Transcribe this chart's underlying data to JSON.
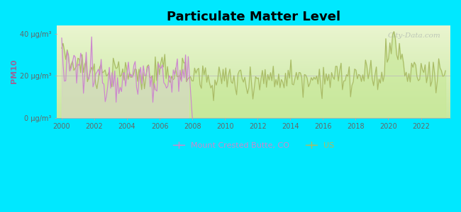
{
  "title": "Particulate Matter Level",
  "ylabel": "PM10",
  "bg_color": "#00e8ff",
  "plot_bg_top": "#f0f8e0",
  "plot_bg_bottom": "#c8e8a0",
  "title_fontsize": 13,
  "ylim": [
    0,
    44
  ],
  "xlim": [
    1999.7,
    2023.8
  ],
  "yticks": [
    0,
    20,
    40
  ],
  "ytick_labels": [
    "0 μg/m³",
    "20 μg/m³",
    "40 μg/m³"
  ],
  "xticks": [
    2000,
    2002,
    2004,
    2006,
    2008,
    2010,
    2012,
    2014,
    2016,
    2018,
    2020,
    2022
  ],
  "mcb_color": "#cc88cc",
  "us_color": "#aabb66",
  "mcb_label": "Mount Crested Butte, CO",
  "us_label": "US",
  "watermark": "City-Data.com",
  "hline_y": 20,
  "hline_color": "#bbbbbb",
  "ylabel_color": "#996699",
  "tick_color": "#666666"
}
